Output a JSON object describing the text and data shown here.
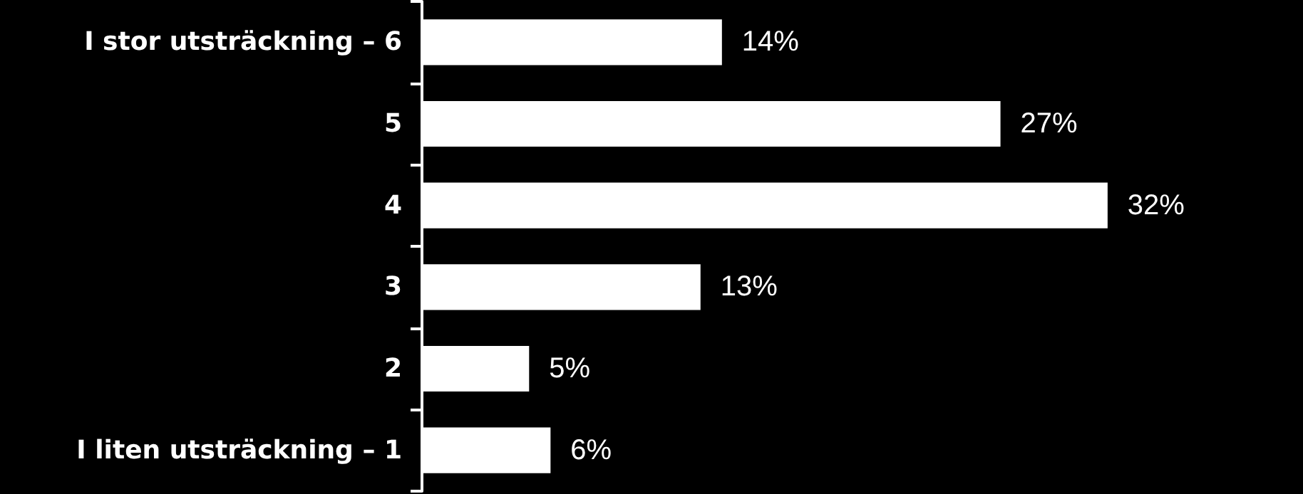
{
  "chart_data": {
    "type": "bar",
    "orientation": "horizontal",
    "categories": [
      "I stor utsträckning – 6",
      "5",
      "4",
      "3",
      "2",
      "I liten utsträckning – 1"
    ],
    "values": [
      14,
      27,
      32,
      13,
      5,
      6
    ],
    "color": "#ffffff",
    "value_labels": [
      "14%",
      "27%",
      "32%",
      "13%",
      "5%",
      "6%"
    ]
  }
}
